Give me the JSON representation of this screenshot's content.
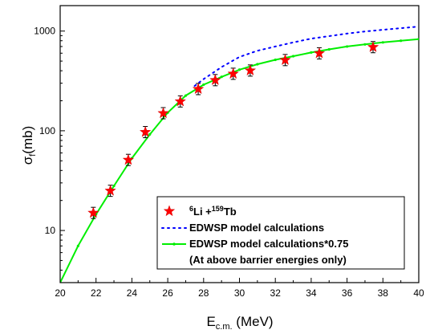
{
  "chart_data": {
    "type": "scatter",
    "xlabel_main": "E",
    "xlabel_sub": "c.m.",
    "xlabel_unit": " (MeV)",
    "ylabel_main": "σ",
    "ylabel_sub": "f",
    "ylabel_unit": "(mb)",
    "xlim": [
      20,
      40
    ],
    "ylim": [
      3,
      1800
    ],
    "yscale": "log",
    "grid": false,
    "legend_position": "bottom-right",
    "x_ticks": [
      20,
      22,
      24,
      26,
      28,
      30,
      32,
      34,
      36,
      38,
      40
    ],
    "y_ticks": [
      10,
      100,
      1000
    ],
    "series": [
      {
        "kind": "points",
        "legend_parts": [
          "6",
          "Li +",
          "159",
          "Tb"
        ],
        "color": "#ff0000",
        "marker": "star",
        "x": [
          21.85,
          22.8,
          23.8,
          24.75,
          25.75,
          26.7,
          27.7,
          28.65,
          29.65,
          30.6,
          32.55,
          34.45,
          37.45
        ],
        "y": [
          15,
          25,
          51,
          97,
          150,
          197,
          262,
          322,
          373,
          402,
          512,
          598,
          690
        ]
      },
      {
        "name": "EDWSP model calculations",
        "kind": "dotted-line",
        "color": "#0000ff",
        "x": [
          27.5,
          28,
          29,
          30,
          31,
          32,
          33,
          34,
          35,
          36,
          37,
          38,
          39,
          40
        ],
        "y": [
          282,
          330,
          435,
          550,
          635,
          700,
          770,
          840,
          890,
          945,
          990,
          1030,
          1070,
          1110
        ]
      },
      {
        "name": "EDWSP model calculations*0.75",
        "kind": "line",
        "color": "#00ee00",
        "x": [
          20,
          21,
          22,
          23,
          24,
          25,
          26,
          27,
          28,
          29,
          30,
          31,
          32,
          33,
          34,
          35,
          36,
          37,
          38,
          39,
          40
        ],
        "y": [
          3,
          7,
          14.5,
          28,
          53,
          92,
          152,
          225,
          290,
          347,
          410,
          465,
          515,
          560,
          610,
          655,
          700,
          735,
          770,
          800,
          830
        ]
      }
    ],
    "legend_note": "(At above barrier energies only)"
  }
}
